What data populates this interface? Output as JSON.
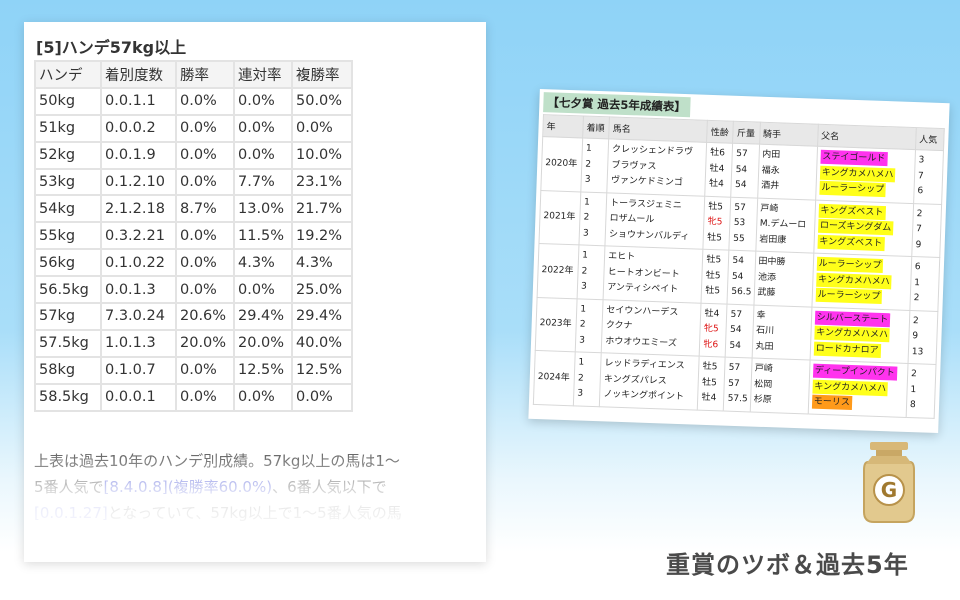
{
  "left_panel": {
    "title": "[5]ハンデ57kg以上",
    "headers": [
      "ハンデ",
      "着別度数",
      "勝率",
      "連対率",
      "複勝率"
    ],
    "rows": [
      [
        "50kg",
        "0.0.1.1",
        "0.0%",
        "0.0%",
        "50.0%"
      ],
      [
        "51kg",
        "0.0.0.2",
        "0.0%",
        "0.0%",
        "0.0%"
      ],
      [
        "52kg",
        "0.0.1.9",
        "0.0%",
        "0.0%",
        "10.0%"
      ],
      [
        "53kg",
        "0.1.2.10",
        "0.0%",
        "7.7%",
        "23.1%"
      ],
      [
        "54kg",
        "2.1.2.18",
        "8.7%",
        "13.0%",
        "21.7%"
      ],
      [
        "55kg",
        "0.3.2.21",
        "0.0%",
        "11.5%",
        "19.2%"
      ],
      [
        "56kg",
        "0.1.0.22",
        "0.0%",
        "4.3%",
        "4.3%"
      ],
      [
        "56.5kg",
        "0.0.1.3",
        "0.0%",
        "0.0%",
        "25.0%"
      ],
      [
        "57kg",
        "7.3.0.24",
        "20.6%",
        "29.4%",
        "29.4%"
      ],
      [
        "57.5kg",
        "1.0.1.3",
        "20.0%",
        "20.0%",
        "40.0%"
      ],
      [
        "58kg",
        "0.1.0.7",
        "0.0%",
        "12.5%",
        "12.5%"
      ],
      [
        "58.5kg",
        "0.0.0.1",
        "0.0%",
        "0.0%",
        "0.0%"
      ]
    ],
    "note": {
      "line1": "上表は過去10年のハンデ別成績。57kg以上の馬は1〜",
      "line2_a": "5番人気で",
      "line2_hl": "[8.4.0.8](複勝率60.0%)",
      "line2_b": "、6番人気以下で",
      "line3_hl": "[0.0.1.27]",
      "line3_b": "となっていて、57kg以上で1〜5番人気の馬"
    }
  },
  "right_panel": {
    "title": "【七夕賞 過去5年成績表】",
    "headers": [
      "年",
      "着順",
      "馬名",
      "性齢",
      "斤量",
      "騎手",
      "父名",
      "人気"
    ],
    "years": [
      {
        "year": "2020年",
        "ranks": [
          "1",
          "2",
          "3"
        ],
        "horses": [
          "クレッシェンドラヴ",
          "ブラヴァス",
          "ヴァンケドミンゴ"
        ],
        "sexage": [
          "牡6",
          "牡4",
          "牡4"
        ],
        "weights": [
          "57",
          "54",
          "54"
        ],
        "jockeys": [
          "内田",
          "福永",
          "酒井"
        ],
        "sires": [
          "ステイゴールド",
          "キングカメハメハ",
          "ルーラーシップ"
        ],
        "popularity": [
          "3",
          "7",
          "6"
        ]
      },
      {
        "year": "2021年",
        "ranks": [
          "1",
          "2",
          "3"
        ],
        "horses": [
          "トーラスジェミニ",
          "ロザムール",
          "ショウナンバルディ"
        ],
        "sexage": [
          "牡5",
          "牝5",
          "牡5"
        ],
        "weights": [
          "57",
          "53",
          "55"
        ],
        "jockeys": [
          "戸崎",
          "M.デムーロ",
          "岩田康"
        ],
        "sires": [
          "キングズベスト",
          "ローズキングダム",
          "キングズベスト"
        ],
        "popularity": [
          "2",
          "7",
          "9"
        ]
      },
      {
        "year": "2022年",
        "ranks": [
          "1",
          "2",
          "3"
        ],
        "horses": [
          "エヒト",
          "ヒートオンビート",
          "アンティシペイト"
        ],
        "sexage": [
          "牡5",
          "牡5",
          "牡5"
        ],
        "weights": [
          "54",
          "54",
          "56.5"
        ],
        "jockeys": [
          "田中勝",
          "池添",
          "武藤"
        ],
        "sires": [
          "ルーラーシップ",
          "キングカメハメハ",
          "ルーラーシップ"
        ],
        "popularity": [
          "6",
          "1",
          "2"
        ]
      },
      {
        "year": "2023年",
        "ranks": [
          "1",
          "2",
          "3"
        ],
        "horses": [
          "セイウンハーデス",
          "ククナ",
          "ホウオウエミーズ"
        ],
        "sexage": [
          "牡4",
          "牝5",
          "牝6"
        ],
        "weights": [
          "57",
          "54",
          "54"
        ],
        "jockeys": [
          "幸",
          "石川",
          "丸田"
        ],
        "sires": [
          "シルバーステート",
          "キングカメハメハ",
          "ロードカナロア"
        ],
        "popularity": [
          "2",
          "9",
          "13"
        ]
      },
      {
        "year": "2024年",
        "ranks": [
          "1",
          "2",
          "3"
        ],
        "horses": [
          "レッドラディエンス",
          "キングズパレス",
          "ノッキングポイント"
        ],
        "sexage": [
          "牡5",
          "牡5",
          "牡4"
        ],
        "weights": [
          "57",
          "57",
          "57.5"
        ],
        "jockeys": [
          "戸崎",
          "松岡",
          "杉原"
        ],
        "sires": [
          "ディープインパクト",
          "キングカメハメハ",
          "モーリス"
        ],
        "popularity": [
          "2",
          "1",
          "8"
        ]
      }
    ],
    "colors": {
      "yellow": "#ffff1a",
      "magenta": "#ff33ee",
      "orange": "#ff9a1a",
      "title_bg": "#bfe0c9",
      "female_text": "#dd1111"
    }
  },
  "logo": {
    "letter": "G",
    "icon": "trophy-jar-icon"
  },
  "footer": {
    "title": "重賞のツボ＆過去5年"
  }
}
